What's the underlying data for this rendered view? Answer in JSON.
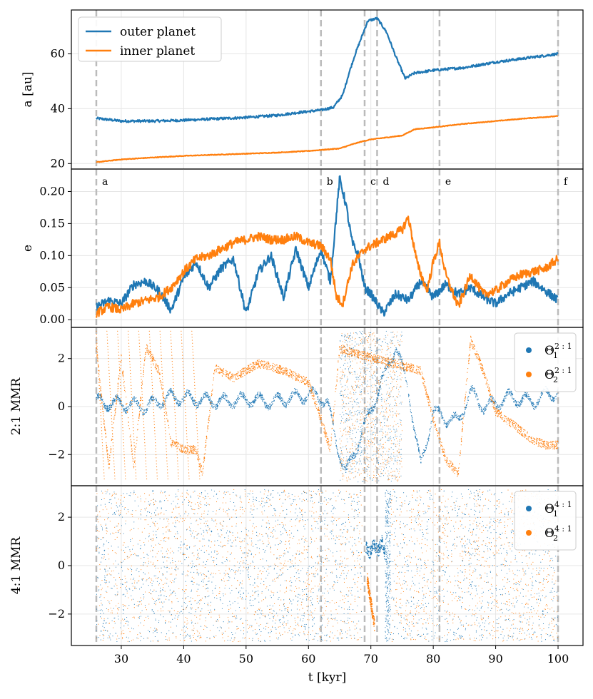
{
  "chart_data": {
    "type": "line",
    "shared_x": {
      "label": "t [kyr]",
      "ticks": [
        30,
        40,
        50,
        60,
        70,
        80,
        90,
        100
      ],
      "lim": [
        22,
        104
      ]
    },
    "events": [
      {
        "label": "a",
        "t": 26
      },
      {
        "label": "b",
        "t": 62
      },
      {
        "label": "c",
        "t": 69
      },
      {
        "label": "d",
        "t": 71
      },
      {
        "label": "e",
        "t": 81
      },
      {
        "label": "f",
        "t": 100
      }
    ],
    "colors": {
      "outer": "#1f77b4",
      "inner": "#ff7f0e"
    },
    "panels": [
      {
        "id": "a",
        "ylabel": "a [au]",
        "ylim": [
          18,
          76
        ],
        "yticks": [
          20,
          40,
          60
        ],
        "legend": {
          "placement": "upper-left",
          "entries": [
            "outer planet",
            "inner planet"
          ]
        },
        "series": [
          {
            "name": "outer planet",
            "color": "#1f77b4",
            "x": [
              26,
              30,
              35,
              40,
              45,
              50,
              55,
              58,
              62,
              64,
              65.5,
              66.5,
              67.5,
              68.5,
              69.5,
              71,
              72.5,
              74,
              75.5,
              77,
              80,
              85,
              90,
              95,
              100
            ],
            "y": [
              36.5,
              35.5,
              35.5,
              35.8,
              36.3,
              36.8,
              37.6,
              38.5,
              39.5,
              40.5,
              45,
              53,
              60,
              66,
              72,
              73,
              68,
              59,
              51,
              53,
              54,
              55,
              57,
              58.5,
              60
            ]
          },
          {
            "name": "inner planet",
            "color": "#ff7f0e",
            "x": [
              26,
              30,
              35,
              40,
              45,
              50,
              55,
              60,
              65,
              67,
              68.5,
              70,
              72.5,
              75,
              77,
              80,
              85,
              90,
              95,
              100
            ],
            "y": [
              20.5,
              21.5,
              22.2,
              22.8,
              23.2,
              23.6,
              24.0,
              24.6,
              25.5,
              27,
              28,
              28.8,
              29.5,
              30.2,
              32.5,
              33.2,
              34.5,
              35.5,
              36.5,
              37.3
            ]
          }
        ]
      },
      {
        "id": "e",
        "ylabel": "e",
        "ylim": [
          -0.012,
          0.235
        ],
        "yticks": [
          0.0,
          0.05,
          0.1,
          0.15,
          0.2
        ],
        "ytick_labels": [
          "0.00",
          "0.05",
          "0.10",
          "0.15",
          "0.20"
        ],
        "series": [
          {
            "name": "outer planet",
            "color": "#1f77b4",
            "x": [
              26,
              28,
              30,
              32,
              34,
              36,
              38,
              40,
              42,
              44,
              46,
              48,
              50,
              52,
              54,
              56,
              58,
              60,
              62,
              63.5,
              65,
              66,
              67,
              68,
              69,
              70,
              72,
              74,
              76,
              78,
              80,
              82,
              84,
              86,
              88,
              90,
              92,
              94,
              96,
              98,
              100
            ],
            "y": [
              0.02,
              0.03,
              0.025,
              0.055,
              0.06,
              0.045,
              0.015,
              0.065,
              0.09,
              0.05,
              0.08,
              0.095,
              0.01,
              0.075,
              0.1,
              0.035,
              0.11,
              0.05,
              0.11,
              0.06,
              0.22,
              0.18,
              0.12,
              0.1,
              0.05,
              0.04,
              0.01,
              0.04,
              0.03,
              0.06,
              0.035,
              0.055,
              0.04,
              0.05,
              0.035,
              0.025,
              0.04,
              0.05,
              0.06,
              0.045,
              0.03
            ]
          },
          {
            "name": "inner planet",
            "color": "#ff7f0e",
            "x": [
              26,
              28,
              30,
              32,
              34,
              36,
              38,
              40,
              42,
              44,
              46,
              48,
              50,
              52,
              54,
              56,
              58,
              60,
              62,
              63.5,
              64.5,
              65.5,
              67,
              69,
              71,
              73,
              75,
              76,
              77.5,
              79,
              80,
              81,
              82,
              84,
              86,
              88,
              90,
              92,
              94,
              96,
              98,
              100
            ],
            "y": [
              0.01,
              0.02,
              0.015,
              0.025,
              0.03,
              0.035,
              0.05,
              0.075,
              0.095,
              0.1,
              0.11,
              0.12,
              0.125,
              0.13,
              0.125,
              0.125,
              0.13,
              0.12,
              0.115,
              0.095,
              0.035,
              0.025,
              0.085,
              0.11,
              0.12,
              0.13,
              0.14,
              0.16,
              0.085,
              0.045,
              0.09,
              0.12,
              0.07,
              0.02,
              0.07,
              0.04,
              0.045,
              0.06,
              0.07,
              0.075,
              0.08,
              0.095
            ]
          }
        ]
      },
      {
        "id": "mmr21",
        "ylabel": "2:1 MMR",
        "ylim": [
          -3.3,
          3.3
        ],
        "yticks": [
          -2,
          0,
          2
        ],
        "ytick_labels": [
          "−2",
          "0",
          "2"
        ],
        "legend": {
          "placement": "upper-right",
          "entries": [
            {
              "base": "Θ",
              "sub": "1",
              "sup": "2 : 1"
            },
            {
              "base": "Θ",
              "sub": "2",
              "sup": "2 : 1"
            }
          ]
        },
        "series": [
          {
            "name": "Θ₁^(2:1)",
            "color": "#1f77b4",
            "x": [
              26,
              30,
              34,
              38,
              42,
              46,
              50,
              54,
              58,
              61,
              63,
              64.5,
              66,
              74,
              76,
              77,
              78,
              80,
              82,
              84,
              86,
              88,
              90,
              92,
              94,
              96,
              98,
              100
            ],
            "y": [
              0.2,
              0.1,
              0.0,
              0.4,
              0.3,
              0.2,
              0.3,
              0.2,
              0.4,
              0.5,
              0.2,
              -1.5,
              -2.8,
              2.5,
              0.8,
              -1.0,
              -2.5,
              -0.2,
              -0.5,
              -0.6,
              0.6,
              0.0,
              0.1,
              0.4,
              0.3,
              0.2,
              0.5,
              0.6
            ]
          },
          {
            "name": "Θ₂^(2:1)",
            "color": "#ff7f0e",
            "x": [
              26,
              28,
              30,
              32,
              34,
              36,
              38,
              40,
              42,
              43,
              45,
              48,
              52,
              56,
              60,
              62,
              63.5,
              65,
              78,
              80,
              82,
              84,
              86,
              88,
              90,
              92,
              94,
              96,
              98,
              100
            ],
            "y": [
              2.5,
              -2.5,
              2.0,
              -2.5,
              2.5,
              1.5,
              -1.5,
              -1.8,
              -1.8,
              -2.8,
              1.6,
              1.2,
              1.8,
              1.5,
              1.0,
              -0.5,
              -1.8,
              2.4,
              1.5,
              -0.5,
              -2.2,
              -2.8,
              2.8,
              1.5,
              -0.2,
              -0.6,
              -1.0,
              -1.4,
              -1.6,
              -1.6
            ]
          }
        ]
      },
      {
        "id": "mmr41",
        "ylabel": "4:1 MMR",
        "ylim": [
          -3.3,
          3.3
        ],
        "yticks": [
          -2,
          0,
          2
        ],
        "ytick_labels": [
          "−2",
          "0",
          "2"
        ],
        "legend": {
          "placement": "upper-right",
          "entries": [
            {
              "base": "Θ",
              "sub": "1",
              "sup": "4 : 1"
            },
            {
              "base": "Θ",
              "sub": "2",
              "sup": "4 : 1"
            }
          ]
        },
        "series": [
          {
            "name": "Θ₁^(4:1)",
            "color": "#1f77b4",
            "x": [
              69.2,
              69.8,
              70.5,
              71.2,
              71.8,
              72.3
            ],
            "y": [
              0.8,
              0.5,
              0.9,
              0.6,
              1.0,
              0.4
            ],
            "scatter_fill": true
          },
          {
            "name": "Θ₂^(4:1)",
            "color": "#ff7f0e",
            "x": [
              69.4,
              70.0,
              70.6
            ],
            "y": [
              -0.5,
              -1.5,
              -2.5
            ],
            "scatter_fill": true
          }
        ]
      }
    ]
  }
}
